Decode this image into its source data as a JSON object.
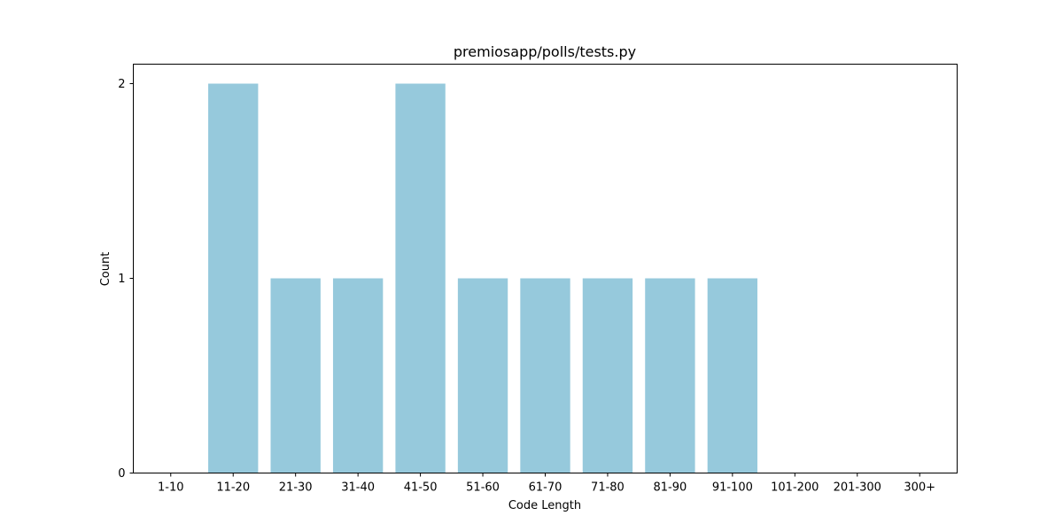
{
  "chart_data": {
    "type": "bar",
    "title": "premiosapp/polls/tests.py",
    "xlabel": "Code Length",
    "ylabel": "Count",
    "categories": [
      "1-10",
      "11-20",
      "21-30",
      "31-40",
      "41-50",
      "51-60",
      "61-70",
      "71-80",
      "81-90",
      "91-100",
      "101-200",
      "201-300",
      "300+"
    ],
    "values": [
      0,
      2,
      1,
      1,
      2,
      1,
      1,
      1,
      1,
      1,
      0,
      0,
      0
    ],
    "ylim": [
      0,
      2.1
    ],
    "yticks": [
      "0",
      "1",
      "2"
    ],
    "grid": false,
    "bar_color": "#96c9dc",
    "frame_color": "#000000"
  }
}
